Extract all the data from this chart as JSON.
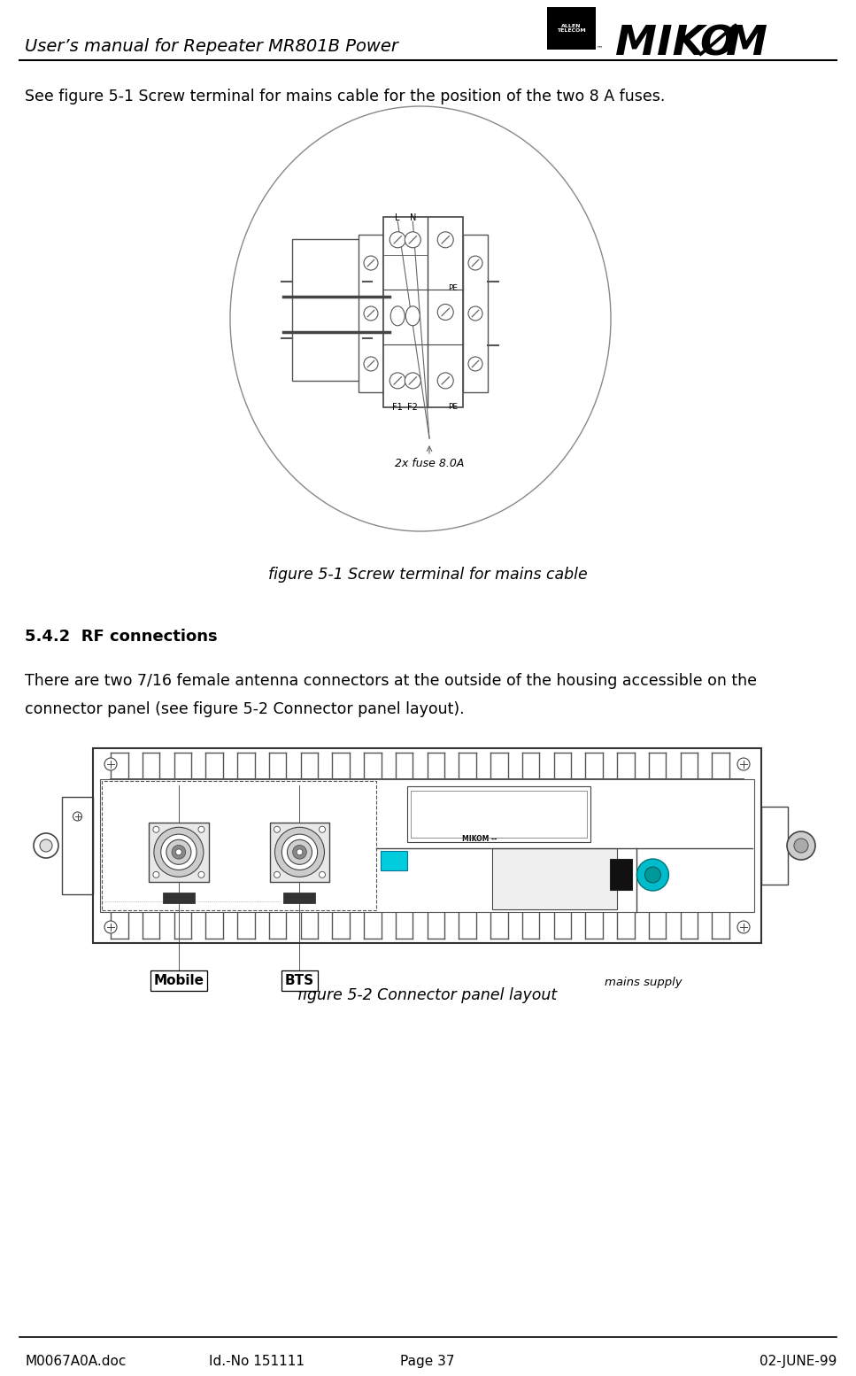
{
  "title_header": "User’s manual for Repeater MR801B Power",
  "footer_left": "M0067A0A.doc",
  "footer_center_left": "Id.-No 151111",
  "footer_center_right": "Page 37",
  "footer_right": "02-JUNE-99",
  "para1": "See figure 5-1 Screw terminal for mains cable for the position of the two 8 A fuses.",
  "fig1_caption": "figure 5-1 Screw terminal for mains cable",
  "section_header": "5.4.2  RF connections",
  "para2_line1": "There are two 7/16 female antenna connectors at the outside of the housing accessible on the",
  "para2_line2": "connector panel (see figure 5-2 Connector panel layout).",
  "fig2_caption": "figure 5-2 Connector panel layout",
  "bg_color": "#ffffff",
  "text_color": "#000000",
  "line_color": "#000000"
}
